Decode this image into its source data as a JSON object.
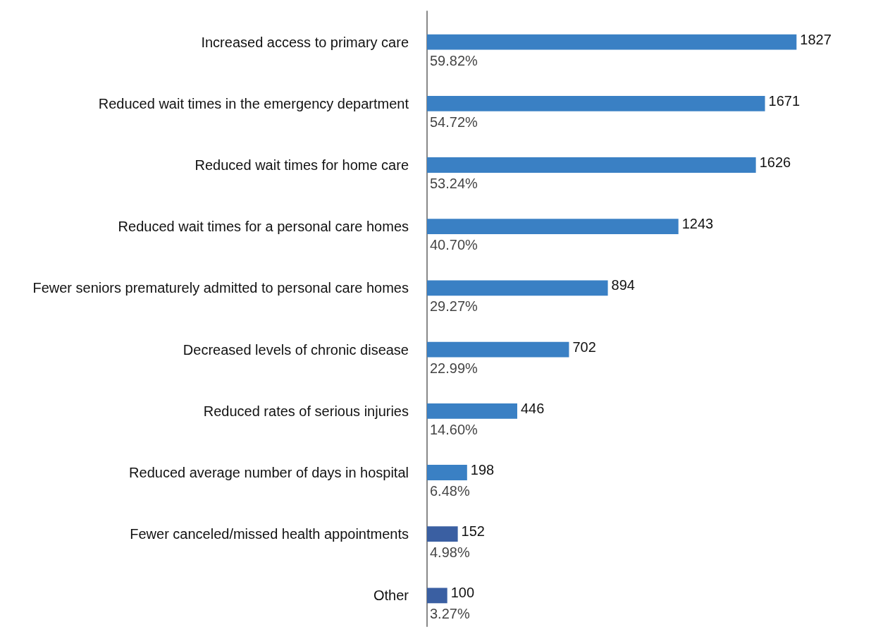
{
  "chart_data": {
    "type": "bar",
    "orientation": "horizontal",
    "categories": [
      "Increased access to primary care",
      "Reduced wait times in the emergency department",
      "Reduced wait times for home care",
      "Reduced wait times for a personal care homes",
      "Fewer seniors prematurely admitted to personal care homes",
      "Decreased levels of chronic disease",
      "Reduced rates of serious injuries",
      "Reduced average number of days in hospital",
      "Fewer canceled/missed health appointments",
      "Other"
    ],
    "values": [
      1827,
      1671,
      1626,
      1243,
      894,
      702,
      446,
      198,
      152,
      100
    ],
    "colors": [
      "#3a80c4",
      "#3a80c4",
      "#3a80c4",
      "#3a80c4",
      "#3a80c4",
      "#3a80c4",
      "#3a80c4",
      "#3a80c4",
      "#3a5fa2",
      "#3a5fa2"
    ],
    "annotations": [
      "59.82%",
      "54.72%",
      "53.24%",
      "40.70%",
      "29.27%",
      "22.99%",
      "14.60%",
      "6.48%",
      "4.98%",
      "3.27%"
    ],
    "data_labels": true
  }
}
